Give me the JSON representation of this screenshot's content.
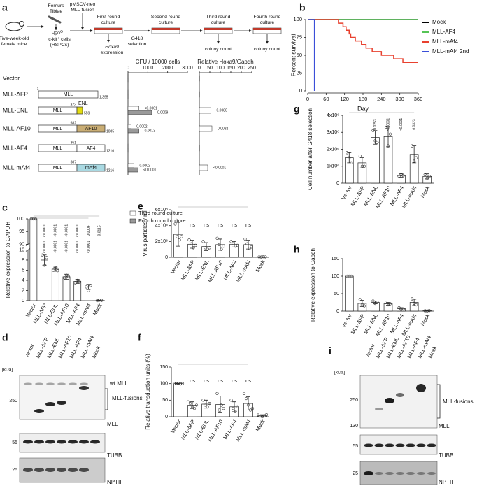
{
  "panel_labels": [
    "a",
    "b",
    "c",
    "d",
    "e",
    "f",
    "g",
    "h",
    "i"
  ],
  "diagram": {
    "steps": [
      "Five-week-old",
      "female mice",
      "Femurs",
      "Tibiae",
      "c-kit⁺ cells",
      "(HSPCs)",
      "pMSCV-neo",
      "MLL-fusion",
      "First round",
      "culture",
      "G418",
      "selection",
      "Hoxa9",
      "expression",
      "Second round",
      "culture",
      "Third round",
      "culture",
      "colony count",
      "Fourth round",
      "culture",
      "colony count"
    ],
    "constructs": [
      {
        "parts": [
          "MLL"
        ],
        "numbers": [
          "1",
          "1,395"
        ]
      },
      {
        "parts": [
          "MLL",
          "ENL"
        ],
        "numbers": [
          "373",
          "559"
        ],
        "color": "#e3dc10"
      },
      {
        "parts": [
          "MLL",
          "AF10"
        ],
        "numbers": [
          "682",
          "1085"
        ],
        "color": "#c9ad74"
      },
      {
        "parts": [
          "MLL",
          "AF4"
        ],
        "numbers": [
          "361",
          "1210"
        ],
        "color": "#ffffff"
      },
      {
        "parts": [
          "MLL",
          "mAf4"
        ],
        "numbers": [
          "387",
          "1216"
        ],
        "color": "#a9d9e2"
      }
    ]
  },
  "blots": [
    {
      "lanes": [
        "Vector",
        "MLL-ΔFP",
        "MLL-ENL",
        "MLL-AF10",
        "MLL-AF4",
        "MLL-mAf4",
        "Mock"
      ],
      "unit": "[kDa]",
      "markers": [
        "250",
        "55",
        "25"
      ],
      "labels": [
        "wt MLL",
        "MLL-fusions",
        "MLL",
        "TUBB",
        "NPTII"
      ]
    },
    {
      "lanes": [
        "Vector",
        "MLL-ΔFP",
        "MLL-ENL",
        "MLL-AF10",
        "MLL-AF4",
        "MLL-mAf4",
        "Mock"
      ],
      "unit": "[kDa]",
      "markers": [
        "250",
        "130",
        "55",
        "25"
      ],
      "labels": [
        "MLL-fusions",
        "MLL",
        "TUBB",
        "NPTII"
      ]
    }
  ],
  "chart_data": [
    {
      "type": "hbar",
      "title": "CFU / 10000 cells",
      "categories": [
        "Vector",
        "MLL-ΔFP",
        "MLL-ENL",
        "MLL-AF10",
        "MLL-AF4",
        "MLL-mAf4"
      ],
      "series": [
        {
          "name": "Third round culture",
          "color": "#ffffff",
          "values": [
            5,
            5,
            550,
            150,
            5,
            300
          ],
          "p_values": [
            null,
            null,
            "<0.0001",
            "0.0002",
            null,
            "0.0002"
          ]
        },
        {
          "name": "Fourth round culture",
          "color": "#9a9a9a",
          "values": [
            5,
            5,
            1200,
            550,
            5,
            500
          ],
          "p_values": [
            null,
            null,
            "0.0009",
            "0.0013",
            null,
            "<0.0001"
          ]
        }
      ],
      "xlim": [
        0,
        3000
      ],
      "xticks": [
        0,
        1000,
        2000,
        3000
      ]
    },
    {
      "type": "hbar",
      "title": "Relative Hoxa9/Gapdh",
      "series": [
        {
          "color": "#ffffff",
          "values": [
            1,
            1,
            55,
            60,
            1,
            40
          ],
          "p_values": [
            null,
            null,
            "0.0080",
            "0.0082",
            null,
            "<0.0001"
          ]
        }
      ],
      "xlim": [
        0,
        250
      ],
      "xticks": [
        0,
        50,
        100,
        150,
        200,
        250
      ]
    },
    {
      "type": "line",
      "ylabel": "Percent survival",
      "xlabel": "Day",
      "series": [
        {
          "name": "Mock",
          "color": "#000000",
          "x": [
            0,
            360
          ],
          "values": [
            100,
            100
          ]
        },
        {
          "name": "MLL-AF4",
          "color": "#55c455",
          "x": [
            0,
            360
          ],
          "values": [
            100,
            100
          ]
        },
        {
          "name": "MLL-mAf4",
          "color": "#e8412f",
          "x": [
            0,
            100,
            100,
            115,
            115,
            125,
            125,
            135,
            135,
            140,
            140,
            155,
            155,
            175,
            175,
            190,
            190,
            210,
            210,
            240,
            240,
            280,
            280,
            310,
            310,
            360
          ],
          "values": [
            100,
            100,
            95,
            95,
            90,
            90,
            85,
            85,
            80,
            80,
            75,
            75,
            70,
            70,
            65,
            65,
            60,
            60,
            55,
            55,
            50,
            50,
            45,
            45,
            40,
            40
          ]
        },
        {
          "name": "MLL-mAf4 2nd",
          "color": "#3a4fd8",
          "x": [
            0,
            22,
            22
          ],
          "values": [
            100,
            100,
            0
          ]
        }
      ],
      "xlim": [
        0,
        360
      ],
      "xticks": [
        0,
        60,
        120,
        180,
        240,
        300,
        360
      ],
      "ylim": [
        0,
        100
      ],
      "yticks": [
        0,
        25,
        50,
        75,
        100
      ]
    },
    {
      "type": "bar",
      "ylabel": "Relative expression to GAPDH",
      "categories": [
        "Vector",
        "MLL-ΔFP",
        "MLL-ENL",
        "MLL-AF10",
        "MLL-AF4",
        "MLL-mAf4",
        "Mock"
      ],
      "values": [
        100,
        8,
        6.2,
        4.7,
        3.8,
        2.7,
        0.05
      ],
      "errors": [
        0,
        1,
        0.4,
        0.5,
        0.4,
        0.5,
        0.05
      ],
      "points": [
        [
          100,
          100,
          100
        ],
        [
          9,
          7,
          8.5
        ],
        [
          6,
          6.5,
          5.9
        ],
        [
          4.5,
          5,
          4.7
        ],
        [
          3.5,
          4,
          3.7
        ],
        [
          2.7,
          2,
          3
        ],
        [
          0,
          0.1,
          0.05
        ]
      ],
      "annotations": [
        [
          "<0.0001",
          "<0.0001",
          "<0.0001",
          "<0.0001",
          "0.0004",
          "0.0115"
        ],
        [
          "<0.0001",
          "<0.0001",
          "<0.0001",
          "<0.0001",
          "<0.0001"
        ]
      ],
      "ylim": [
        0,
        100
      ],
      "axis_break": [
        10,
        90
      ],
      "yticks": [
        0,
        2,
        4,
        6,
        8,
        10,
        90,
        95,
        100
      ]
    },
    {
      "type": "bar",
      "ylabel": "Virus particles / ml",
      "categories": [
        "Vector",
        "MLL-ΔFP",
        "MLL-ENL",
        "MLL-AF10",
        "MLL-AF4",
        "MLL-mAf4",
        "Mock"
      ],
      "values": [
        290000000,
        165000000,
        135000000,
        160000000,
        165000000,
        160000000,
        5000000
      ],
      "errors": [
        150000000,
        50000000,
        50000000,
        70000000,
        35000000,
        55000000,
        2000000
      ],
      "points": [
        [
          420000000,
          260000000,
          220000000,
          260000000
        ],
        [
          220000000,
          170000000,
          120000000,
          150000000
        ],
        [
          200000000,
          120000000,
          100000000,
          120000000
        ],
        [
          240000000,
          160000000,
          100000000,
          140000000
        ],
        [
          200000000,
          170000000,
          140000000,
          150000000
        ],
        [
          230000000,
          170000000,
          110000000,
          130000000
        ],
        [
          5000000,
          3000000,
          7000000,
          5000000
        ]
      ],
      "annotations": [
        [
          "ns",
          "ns",
          "ns",
          "ns",
          "ns"
        ]
      ],
      "ylim": [
        0,
        600000000
      ],
      "yticks": [
        0,
        {
          "value": 200000000,
          "label": "2x10⁸"
        },
        {
          "value": 400000000,
          "label": "4x10⁸"
        },
        {
          "value": 600000000,
          "label": "6x10⁸"
        }
      ]
    },
    {
      "type": "bar",
      "ylabel": "Relative transduction units (%)",
      "categories": [
        "Vector",
        "MLL-ΔFP",
        "MLL-ENL",
        "MLL-AF10",
        "MLL-AF4",
        "MLL-mAf4",
        "Mock"
      ],
      "values": [
        100,
        35,
        38,
        37,
        30,
        40,
        3
      ],
      "errors": [
        1,
        10,
        12,
        25,
        15,
        20,
        3
      ],
      "points": [
        [
          100,
          100,
          101,
          99,
          100
        ],
        [
          45,
          40,
          30,
          25,
          35
        ],
        [
          50,
          35,
          30,
          40
        ],
        [
          70,
          20,
          35,
          25
        ],
        [
          50,
          25,
          15,
          30
        ],
        [
          70,
          55,
          35,
          20,
          25
        ],
        [
          5,
          2,
          0,
          3,
          6
        ]
      ],
      "annotations": [
        [
          "ns",
          "ns",
          "ns",
          "ns",
          "ns"
        ]
      ],
      "ylim": [
        0,
        150
      ],
      "yticks": [
        0,
        50,
        100,
        150
      ]
    },
    {
      "type": "bar",
      "ylabel": "Cell number after G418 selection",
      "categories": [
        "Vector",
        "MLL-ΔFP",
        "MLL-ENL",
        "MLL-AF10",
        "MLL-AF4",
        "MLL-mAf4",
        "Mock"
      ],
      "values": [
        1500000,
        1200000,
        2700000,
        2750000,
        450000,
        1700000,
        400000
      ],
      "errors": [
        300000,
        300000,
        400000,
        600000,
        100000,
        500000,
        150000
      ],
      "points": [
        [
          1800000,
          1500000,
          1200000
        ],
        [
          1600000,
          1000000,
          1000000
        ],
        [
          3100000,
          2500000,
          2400000
        ],
        [
          3300000,
          2200000,
          2900000
        ],
        [
          400000,
          500000,
          450000
        ],
        [
          2200000,
          1300000,
          1500000
        ],
        [
          500000,
          300000,
          400000
        ]
      ],
      "annotations": [
        [
          "0.0253",
          "<0.0001",
          "<0.0001",
          "0.0323"
        ]
      ],
      "ylim": [
        0,
        4000000
      ],
      "yticks": [
        0,
        {
          "value": 1000000,
          "label": "1x10⁶"
        },
        {
          "value": 2000000,
          "label": "2x10⁶"
        },
        {
          "value": 3000000,
          "label": "3x10⁶"
        },
        {
          "value": 4000000,
          "label": "4x10⁶"
        }
      ]
    },
    {
      "type": "bar",
      "ylabel": "Relative expression to Gapdh",
      "categories": [
        "Vector",
        "MLL-ΔFP",
        "MLL-ENL",
        "MLL-AF10",
        "MLL-AF4",
        "MLL-mAf4",
        "Mock"
      ],
      "values": [
        100,
        22,
        25,
        21,
        7,
        25,
        1
      ],
      "errors": [
        0,
        9,
        4,
        4,
        3,
        9,
        0.5
      ],
      "points": [
        [
          100,
          100,
          100
        ],
        [
          33,
          18,
          15
        ],
        [
          29,
          22,
          25
        ],
        [
          25,
          18,
          21
        ],
        [
          10,
          5,
          6
        ],
        [
          35,
          22,
          18
        ],
        [
          1,
          0.5,
          1.5
        ]
      ],
      "ylim": [
        0,
        150
      ],
      "yticks": [
        0,
        50,
        100,
        150
      ]
    }
  ]
}
